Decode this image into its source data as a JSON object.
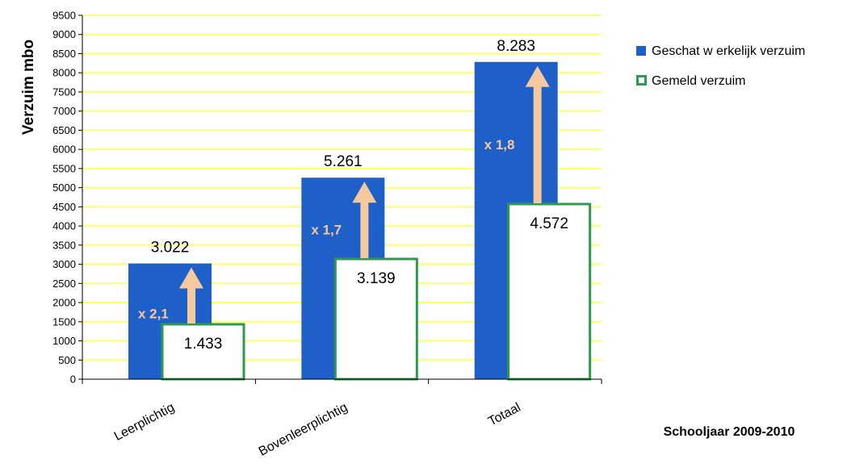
{
  "chart_data": {
    "type": "bar",
    "ylabel": "Verzuim mbo",
    "xlabel": "Schooljaar 2009-2010",
    "ylim": [
      0,
      9500
    ],
    "ytick_step": 500,
    "grid": true,
    "grid_color": "#ffff66",
    "legend_position": "right",
    "categories": [
      "Leerplichtig",
      "Bovenleerplichtig",
      "Totaal"
    ],
    "series": [
      {
        "name": "Geschat w erkelijk verzuim",
        "color": "#1f5fc8",
        "values": [
          3022,
          5261,
          8283
        ],
        "labels": [
          "3.022",
          "5.261",
          "8.283"
        ]
      },
      {
        "name": "Gemeld verzuim",
        "color": "#2e9a4e",
        "fill": "#ffffff",
        "values": [
          1433,
          3139,
          4572
        ],
        "labels": [
          "1.433",
          "3.139",
          "4.572"
        ]
      }
    ],
    "annotations": [
      {
        "category": "Leerplichtig",
        "text": "x 2,1"
      },
      {
        "category": "Bovenleerplichtig",
        "text": "x 1,7"
      },
      {
        "category": "Totaal",
        "text": "x 1,8"
      }
    ],
    "arrow_color": "#f5c9a0"
  }
}
